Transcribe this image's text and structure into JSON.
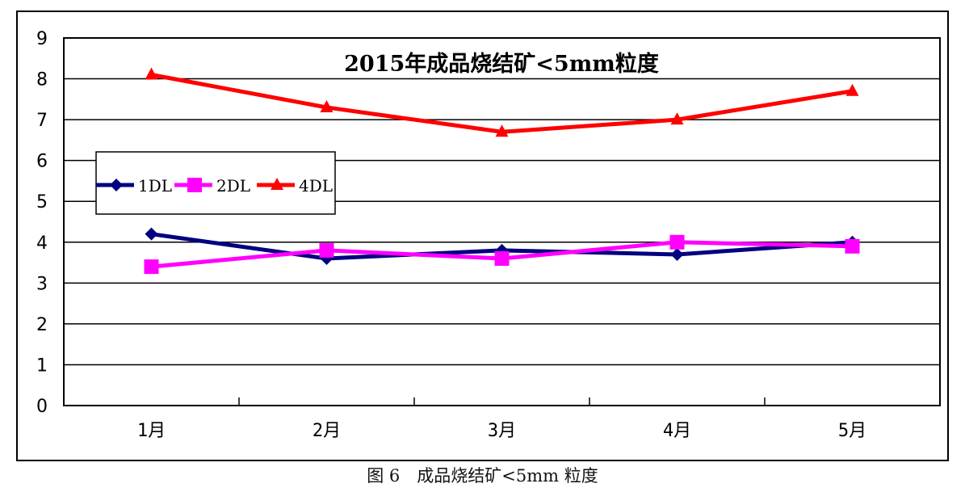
{
  "chart_data": {
    "type": "line",
    "title": "2015年成品烧结矿<5mm粒度",
    "xlabel": "",
    "ylabel": "",
    "categories": [
      "1月",
      "2月",
      "3月",
      "4月",
      "5月"
    ],
    "ylim": [
      0,
      9
    ],
    "yticks": [
      0,
      1,
      2,
      3,
      4,
      5,
      6,
      7,
      8,
      9
    ],
    "grid": true,
    "legend_position": "upper-left inside plot",
    "series": [
      {
        "name": "1DL",
        "color": "#000080",
        "marker": "diamond",
        "values": [
          4.2,
          3.6,
          3.8,
          3.7,
          4.0
        ]
      },
      {
        "name": "2DL",
        "color": "#ff00ff",
        "marker": "square",
        "values": [
          3.4,
          3.8,
          3.6,
          4.0,
          3.9
        ]
      },
      {
        "name": "4DL",
        "color": "#ff0000",
        "marker": "triangle",
        "values": [
          8.1,
          7.3,
          6.7,
          7.0,
          7.7
        ]
      }
    ]
  },
  "caption": "图 6　成品烧结矿<5mm 粒度"
}
